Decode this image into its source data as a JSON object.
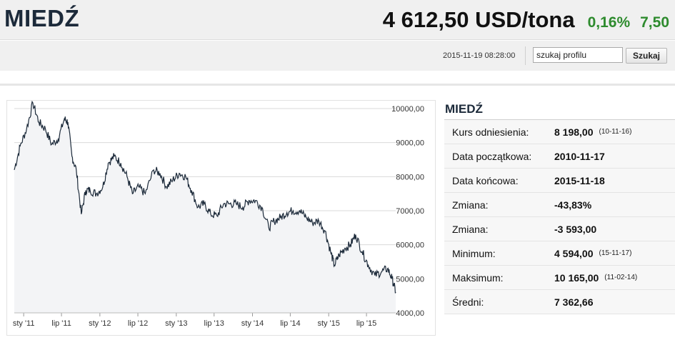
{
  "header": {
    "title": "MIEDŹ",
    "price": "4 612,50 USD/tona",
    "change_pct": "0,16%",
    "change_abs": "7,50"
  },
  "toolbar": {
    "timestamp": "2015-11-19 08:28:00",
    "search_value": "szukaj profilu",
    "search_button": "Szukaj"
  },
  "colors": {
    "positive": "#2e8b2e",
    "line": "#1c2a3a",
    "fill": "#f3f4f6"
  },
  "chart_data": {
    "type": "area",
    "x_ticks": [
      "sty '11",
      "lip '11",
      "sty '12",
      "lip '12",
      "sty '13",
      "lip '13",
      "sty '14",
      "lip '14",
      "sty '15",
      "lip '15"
    ],
    "y_ticks": [
      "10000,00",
      "9000,00",
      "8000,00",
      "7000,00",
      "6000,00",
      "5000,00",
      "4000,00"
    ],
    "ylim": [
      4000,
      10000
    ],
    "xlim": [
      "2010-11-17",
      "2015-11-18"
    ],
    "grid": true,
    "series": [
      {
        "x": [
          "2010-11-17",
          "2010-12-15",
          "2011-01-15",
          "2011-02-14",
          "2011-03-15",
          "2011-04-15",
          "2011-05-15",
          "2011-06-15",
          "2011-07-15",
          "2011-08-01",
          "2011-08-20",
          "2011-09-10",
          "2011-10-04",
          "2011-10-25",
          "2011-11-15",
          "2011-12-15",
          "2012-01-15",
          "2012-02-10",
          "2012-03-10",
          "2012-04-10",
          "2012-05-10",
          "2012-06-05",
          "2012-07-05",
          "2012-08-05",
          "2012-09-15",
          "2012-10-15",
          "2012-11-15",
          "2012-12-15",
          "2013-01-15",
          "2013-02-15",
          "2013-03-15",
          "2013-04-15",
          "2013-05-15",
          "2013-06-15",
          "2013-07-15",
          "2013-08-15",
          "2013-09-15",
          "2013-10-15",
          "2013-11-15",
          "2013-12-15",
          "2014-01-15",
          "2014-02-15",
          "2014-03-20",
          "2014-04-15",
          "2014-05-15",
          "2014-06-15",
          "2014-07-15",
          "2014-08-15",
          "2014-09-15",
          "2014-10-15",
          "2014-11-15",
          "2014-12-15",
          "2015-01-10",
          "2015-01-28",
          "2015-02-20",
          "2015-03-20",
          "2015-04-15",
          "2015-05-10",
          "2015-06-10",
          "2015-07-10",
          "2015-08-10",
          "2015-09-10",
          "2015-10-10",
          "2015-11-01",
          "2015-11-18"
        ],
        "values": [
          8198,
          8900,
          9400,
          10165,
          9600,
          9400,
          8950,
          9100,
          9700,
          9600,
          8600,
          8200,
          6900,
          7600,
          7600,
          7500,
          7700,
          8400,
          8600,
          8400,
          8000,
          7500,
          7700,
          7500,
          8200,
          8100,
          7700,
          7900,
          8100,
          8000,
          7600,
          7100,
          7200,
          6900,
          6850,
          7200,
          7200,
          7200,
          7100,
          7300,
          7300,
          7100,
          6500,
          6700,
          6800,
          6950,
          7000,
          7000,
          6800,
          6650,
          6700,
          6400,
          5800,
          5400,
          5700,
          5900,
          6000,
          6300,
          5800,
          5400,
          5100,
          5200,
          5300,
          5000,
          4612.5
        ]
      }
    ]
  },
  "info": {
    "title": "MIEDŹ",
    "rows": [
      {
        "label": "Kurs odniesienia:",
        "value": "8 198,00",
        "sub": "(10-11-16)"
      },
      {
        "label": "Data początkowa:",
        "value": "2010-11-17",
        "sub": ""
      },
      {
        "label": "Data końcowa:",
        "value": "2015-11-18",
        "sub": ""
      },
      {
        "label": "Zmiana:",
        "value": "-43,83%",
        "sub": ""
      },
      {
        "label": "Zmiana:",
        "value": "-3 593,00",
        "sub": ""
      },
      {
        "label": "Minimum:",
        "value": "4 594,00",
        "sub": "(15-11-17)"
      },
      {
        "label": "Maksimum:",
        "value": "10 165,00",
        "sub": "(11-02-14)"
      },
      {
        "label": "Średni:",
        "value": "7 362,66",
        "sub": ""
      }
    ]
  }
}
